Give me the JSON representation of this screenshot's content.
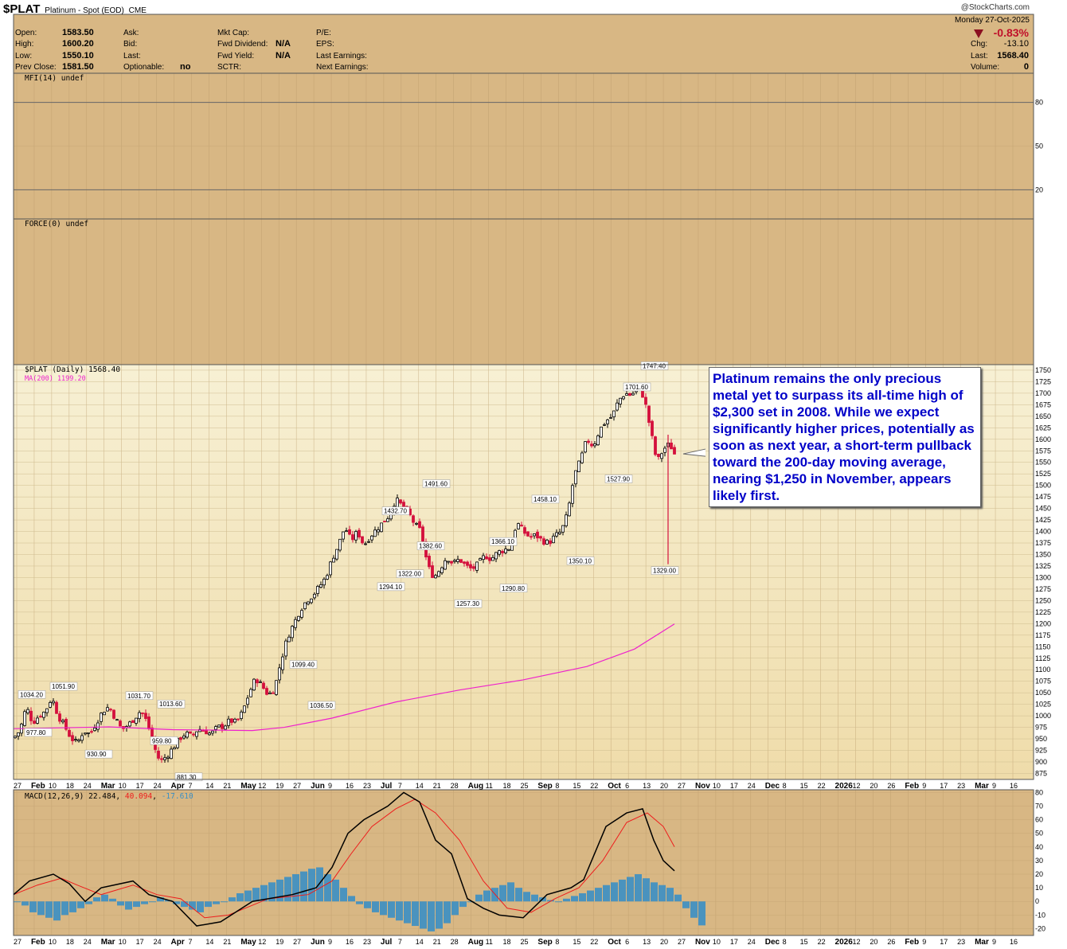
{
  "header": {
    "symbol": "$PLAT",
    "description": "Platinum - Spot (EOD)",
    "exchange": "CME",
    "watermark": "@StockCharts.com",
    "date": "Monday  27-Oct-2025",
    "pct_change": "-0.83%",
    "chg_label": "Chg:",
    "chg_value": "-13.10",
    "last_label": "Last:",
    "last_value": "1568.40",
    "volume_label": "Volume:",
    "volume_value": "0",
    "open_label": "Open:",
    "open_value": "1583.50",
    "high_label": "High:",
    "high_value": "1600.20",
    "low_label": "Low:",
    "low_value": "1550.10",
    "prevclose_label": "Prev Close:",
    "prevclose_value": "1581.50",
    "ask_label": "Ask:",
    "bid_label": "Bid:",
    "lastq_label": "Last:",
    "optionable_label": "Optionable:",
    "optionable_value": "no",
    "mktcap_label": "Mkt Cap:",
    "fwddiv_label": "Fwd Dividend:",
    "fwddiv_value": "N/A",
    "fwdyield_label": "Fwd Yield:",
    "fwdyield_value": "N/A",
    "sctr_label": "SCTR:",
    "pe_label": "P/E:",
    "eps_label": "EPS:",
    "lastearn_label": "Last Earnings:",
    "nextearn_label": "Next Earnings:"
  },
  "panels": {
    "mfi_label": "MFI(14) undef",
    "force_label": "FORCE(0) undef",
    "price_label": "$PLAT (Daily) 1568.40",
    "ma_label": "MA(200) 1199.20",
    "macd_label": "MACD(12,26,9)",
    "macd_v1": "22.484",
    "macd_v2": "40.094",
    "macd_v3": "-17.610"
  },
  "annotation": "Platinum remains the only precious metal yet to surpass its all-time high of $2,300 set in 2008. While we expect significantly higher prices, potentially as soon as next year, a short-term pullback toward the 200-day moving average, nearing $1,250 in November, appears likely first.",
  "colors": {
    "panel_bg": "#d8b784",
    "price_bg": "#f4eac3",
    "up_candle": "#000000",
    "down_candle": "#d4103c",
    "ma": "#ee22cc",
    "macd": "#000000",
    "signal": "#ee1c1c",
    "histogram": "#3b8fc4",
    "annotation_text": "#0000c8",
    "negative": "#c0102a"
  },
  "chart_data": {
    "type": "candlestick",
    "title": "$PLAT (Daily) 1568.40",
    "price_axis": {
      "min": 862,
      "max": 1762,
      "ticks": [
        875,
        900,
        925,
        950,
        975,
        1000,
        1025,
        1050,
        1075,
        1100,
        1125,
        1150,
        1175,
        1200,
        1225,
        1250,
        1275,
        1300,
        1325,
        1350,
        1375,
        1400,
        1425,
        1450,
        1475,
        1500,
        1525,
        1550,
        1575,
        1600,
        1625,
        1650,
        1675,
        1700,
        1725,
        1750
      ]
    },
    "mfi_axis_ticks": [
      "80",
      "50",
      "20"
    ],
    "macd_axis": {
      "min": -25,
      "max": 82,
      "ticks": [
        "80",
        "70",
        "60",
        "50",
        "40",
        "30",
        "20",
        "10",
        "0",
        "-10",
        "-20"
      ]
    },
    "x_labels": [
      {
        "label": "27",
        "bold": false
      },
      {
        "label": "Feb",
        "bold": true
      },
      {
        "label": "10",
        "bold": false
      },
      {
        "label": "18",
        "bold": false
      },
      {
        "label": "24",
        "bold": false
      },
      {
        "label": "Mar",
        "bold": true
      },
      {
        "label": "10",
        "bold": false
      },
      {
        "label": "17",
        "bold": false
      },
      {
        "label": "24",
        "bold": false
      },
      {
        "label": "Apr",
        "bold": true
      },
      {
        "label": "7",
        "bold": false
      },
      {
        "label": "14",
        "bold": false
      },
      {
        "label": "21",
        "bold": false
      },
      {
        "label": "May",
        "bold": true
      },
      {
        "label": "12",
        "bold": false
      },
      {
        "label": "19",
        "bold": false
      },
      {
        "label": "27",
        "bold": false
      },
      {
        "label": "Jun",
        "bold": true
      },
      {
        "label": "9",
        "bold": false
      },
      {
        "label": "16",
        "bold": false
      },
      {
        "label": "23",
        "bold": false
      },
      {
        "label": "Jul",
        "bold": true
      },
      {
        "label": "7",
        "bold": false
      },
      {
        "label": "14",
        "bold": false
      },
      {
        "label": "21",
        "bold": false
      },
      {
        "label": "28",
        "bold": false
      },
      {
        "label": "Aug",
        "bold": true
      },
      {
        "label": "11",
        "bold": false
      },
      {
        "label": "18",
        "bold": false
      },
      {
        "label": "25",
        "bold": false
      },
      {
        "label": "Sep",
        "bold": true
      },
      {
        "label": "8",
        "bold": false
      },
      {
        "label": "15",
        "bold": false
      },
      {
        "label": "22",
        "bold": false
      },
      {
        "label": "Oct",
        "bold": true
      },
      {
        "label": "6",
        "bold": false
      },
      {
        "label": "13",
        "bold": false
      },
      {
        "label": "20",
        "bold": false
      },
      {
        "label": "27",
        "bold": false
      },
      {
        "label": "Nov",
        "bold": true
      },
      {
        "label": "10",
        "bold": false
      },
      {
        "label": "17",
        "bold": false
      },
      {
        "label": "24",
        "bold": false
      },
      {
        "label": "Dec",
        "bold": true
      },
      {
        "label": "8",
        "bold": false
      },
      {
        "label": "15",
        "bold": false
      },
      {
        "label": "22",
        "bold": false
      },
      {
        "label": "2026",
        "bold": true
      },
      {
        "label": "12",
        "bold": false
      },
      {
        "label": "20",
        "bold": false
      },
      {
        "label": "26",
        "bold": false
      },
      {
        "label": "Feb",
        "bold": true
      },
      {
        "label": "9",
        "bold": false
      },
      {
        "label": "17",
        "bold": false
      },
      {
        "label": "23",
        "bold": false
      },
      {
        "label": "Mar",
        "bold": true
      },
      {
        "label": "9",
        "bold": false
      },
      {
        "label": "16",
        "bold": false
      }
    ],
    "price_labels": [
      {
        "text": "1034.20",
        "value": 1034.2,
        "pos": "above"
      },
      {
        "text": "977.80",
        "value": 977.8,
        "pos": "below"
      },
      {
        "text": "1051.90",
        "value": 1051.9,
        "pos": "above"
      },
      {
        "text": "930.90",
        "value": 930.9,
        "pos": "below"
      },
      {
        "text": "1031.70",
        "value": 1031.7,
        "pos": "above"
      },
      {
        "text": "959.80",
        "value": 959.8,
        "pos": "below"
      },
      {
        "text": "1013.60",
        "value": 1013.6,
        "pos": "above"
      },
      {
        "text": "881.30",
        "value": 881.3,
        "pos": "below"
      },
      {
        "text": "1099.40",
        "value": 1099.4,
        "pos": "above"
      },
      {
        "text": "1036.50",
        "value": 1036.5,
        "pos": "below"
      },
      {
        "text": "1432.70",
        "value": 1432.7,
        "pos": "above"
      },
      {
        "text": "1294.10",
        "value": 1294.1,
        "pos": "below"
      },
      {
        "text": "1322.00",
        "value": 1322,
        "pos": "below"
      },
      {
        "text": "1382.60",
        "value": 1382.6,
        "pos": "below"
      },
      {
        "text": "1491.60",
        "value": 1491.6,
        "pos": "above"
      },
      {
        "text": "1257.30",
        "value": 1257.3,
        "pos": "below"
      },
      {
        "text": "1366.10",
        "value": 1366.1,
        "pos": "above"
      },
      {
        "text": "1290.80",
        "value": 1290.8,
        "pos": "below"
      },
      {
        "text": "1458.10",
        "value": 1458.1,
        "pos": "above"
      },
      {
        "text": "1350.10",
        "value": 1350.1,
        "pos": "below"
      },
      {
        "text": "1527.90",
        "value": 1527.9,
        "pos": "below"
      },
      {
        "text": "1701.60",
        "value": 1701.6,
        "pos": "above"
      },
      {
        "text": "1747.40",
        "value": 1747.4,
        "pos": "above"
      },
      {
        "text": "1329.00",
        "value": 1329,
        "pos": "below"
      }
    ],
    "close_path": [
      [
        0,
        952
      ],
      [
        4,
        968
      ],
      [
        8,
        1020
      ],
      [
        12,
        985
      ],
      [
        16,
        1000
      ],
      [
        20,
        1010
      ],
      [
        24,
        1040
      ],
      [
        28,
        1000
      ],
      [
        32,
        978
      ],
      [
        36,
        952
      ],
      [
        40,
        940
      ],
      [
        44,
        968
      ],
      [
        48,
        960
      ],
      [
        52,
        985
      ],
      [
        56,
        1010
      ],
      [
        60,
        1020
      ],
      [
        64,
        994
      ],
      [
        68,
        970
      ],
      [
        72,
        980
      ],
      [
        76,
        995
      ],
      [
        80,
        1012
      ],
      [
        84,
        985
      ],
      [
        88,
        935
      ],
      [
        92,
        900
      ],
      [
        96,
        912
      ],
      [
        100,
        930
      ],
      [
        104,
        950
      ],
      [
        108,
        962
      ],
      [
        112,
        955
      ],
      [
        116,
        972
      ],
      [
        120,
        968
      ],
      [
        124,
        960
      ],
      [
        128,
        975
      ],
      [
        132,
        978
      ],
      [
        136,
        990
      ],
      [
        140,
        985
      ],
      [
        144,
        1010
      ],
      [
        148,
        1050
      ],
      [
        152,
        1082
      ],
      [
        156,
        1065
      ],
      [
        160,
        1045
      ],
      [
        164,
        1060
      ],
      [
        168,
        1120
      ],
      [
        172,
        1170
      ],
      [
        176,
        1200
      ],
      [
        180,
        1230
      ],
      [
        184,
        1250
      ],
      [
        188,
        1262
      ],
      [
        192,
        1280
      ],
      [
        196,
        1300
      ],
      [
        200,
        1340
      ],
      [
        204,
        1370
      ],
      [
        208,
        1410
      ],
      [
        212,
        1380
      ],
      [
        216,
        1400
      ],
      [
        220,
        1370
      ],
      [
        224,
        1390
      ],
      [
        228,
        1405
      ],
      [
        232,
        1420
      ],
      [
        236,
        1435
      ],
      [
        240,
        1470
      ],
      [
        244,
        1455
      ],
      [
        248,
        1440
      ],
      [
        252,
        1415
      ],
      [
        256,
        1400
      ],
      [
        260,
        1325
      ],
      [
        264,
        1300
      ],
      [
        268,
        1320
      ],
      [
        272,
        1345
      ],
      [
        276,
        1330
      ],
      [
        280,
        1340
      ],
      [
        284,
        1325
      ],
      [
        288,
        1318
      ],
      [
        292,
        1330
      ],
      [
        296,
        1348
      ],
      [
        300,
        1340
      ],
      [
        304,
        1355
      ],
      [
        308,
        1360
      ],
      [
        312,
        1365
      ],
      [
        316,
        1420
      ],
      [
        320,
        1400
      ],
      [
        324,
        1388
      ],
      [
        328,
        1392
      ],
      [
        332,
        1380
      ],
      [
        336,
        1375
      ],
      [
        340,
        1390
      ],
      [
        344,
        1400
      ],
      [
        348,
        1440
      ],
      [
        352,
        1520
      ],
      [
        356,
        1555
      ],
      [
        360,
        1600
      ],
      [
        364,
        1585
      ],
      [
        368,
        1620
      ],
      [
        372,
        1640
      ],
      [
        376,
        1650
      ],
      [
        380,
        1685
      ],
      [
        384,
        1700
      ],
      [
        388,
        1695
      ],
      [
        392,
        1715
      ],
      [
        396,
        1690
      ],
      [
        400,
        1620
      ],
      [
        404,
        1550
      ],
      [
        408,
        1578
      ],
      [
        412,
        1590
      ],
      [
        415,
        1568.4
      ]
    ],
    "ma200": [
      [
        0,
        972
      ],
      [
        60,
        976
      ],
      [
        100,
        970
      ],
      [
        150,
        968
      ],
      [
        170,
        975
      ],
      [
        200,
        995
      ],
      [
        240,
        1030
      ],
      [
        280,
        1056
      ],
      [
        320,
        1078
      ],
      [
        360,
        1107
      ],
      [
        390,
        1145
      ],
      [
        415,
        1199.2
      ]
    ],
    "macd_series": [
      [
        0,
        5
      ],
      [
        10,
        15
      ],
      [
        25,
        20
      ],
      [
        35,
        13
      ],
      [
        45,
        0
      ],
      [
        55,
        10
      ],
      [
        75,
        15
      ],
      [
        85,
        5
      ],
      [
        100,
        0
      ],
      [
        115,
        -18
      ],
      [
        130,
        -15
      ],
      [
        150,
        0
      ],
      [
        175,
        5
      ],
      [
        190,
        10
      ],
      [
        200,
        25
      ],
      [
        210,
        50
      ],
      [
        220,
        60
      ],
      [
        235,
        70
      ],
      [
        245,
        80
      ],
      [
        255,
        73
      ],
      [
        265,
        45
      ],
      [
        275,
        35
      ],
      [
        285,
        2
      ],
      [
        295,
        -5
      ],
      [
        305,
        -10
      ],
      [
        320,
        -12
      ],
      [
        335,
        5
      ],
      [
        350,
        10
      ],
      [
        358,
        16
      ],
      [
        372,
        55
      ],
      [
        385,
        65
      ],
      [
        395,
        68
      ],
      [
        402,
        45
      ],
      [
        408,
        30
      ],
      [
        415,
        22.484
      ]
    ],
    "signal_series": [
      [
        0,
        5
      ],
      [
        15,
        12
      ],
      [
        30,
        17
      ],
      [
        40,
        12
      ],
      [
        55,
        5
      ],
      [
        75,
        12
      ],
      [
        90,
        5
      ],
      [
        105,
        2
      ],
      [
        120,
        -12
      ],
      [
        135,
        -10
      ],
      [
        160,
        2
      ],
      [
        185,
        5
      ],
      [
        200,
        15
      ],
      [
        212,
        35
      ],
      [
        225,
        55
      ],
      [
        240,
        68
      ],
      [
        252,
        75
      ],
      [
        265,
        65
      ],
      [
        280,
        45
      ],
      [
        295,
        15
      ],
      [
        310,
        -5
      ],
      [
        325,
        -8
      ],
      [
        340,
        2
      ],
      [
        355,
        10
      ],
      [
        370,
        30
      ],
      [
        385,
        58
      ],
      [
        398,
        65
      ],
      [
        408,
        55
      ],
      [
        415,
        40.094
      ]
    ],
    "hist_values": [
      0,
      -3,
      -8,
      -10,
      -12,
      -14,
      -10,
      -8,
      -5,
      -2,
      3,
      5,
      2,
      -3,
      -6,
      -4,
      -2,
      0,
      3,
      1,
      -2,
      -4,
      -6,
      -8,
      -4,
      -2,
      0,
      3,
      6,
      8,
      10,
      12,
      14,
      16,
      18,
      20,
      22,
      24,
      25,
      20,
      16,
      10,
      4,
      -2,
      -5,
      -8,
      -10,
      -12,
      -14,
      -16,
      -18,
      -20,
      -22,
      -20,
      -16,
      -10,
      -4,
      0,
      5,
      8,
      10,
      12,
      14,
      10,
      7,
      5,
      3,
      1,
      0,
      2,
      4,
      6,
      8,
      10,
      12,
      14,
      16,
      18,
      20,
      17,
      14,
      12,
      10,
      5,
      -5,
      -12,
      -17.61
    ],
    "hist_step": 5
  }
}
